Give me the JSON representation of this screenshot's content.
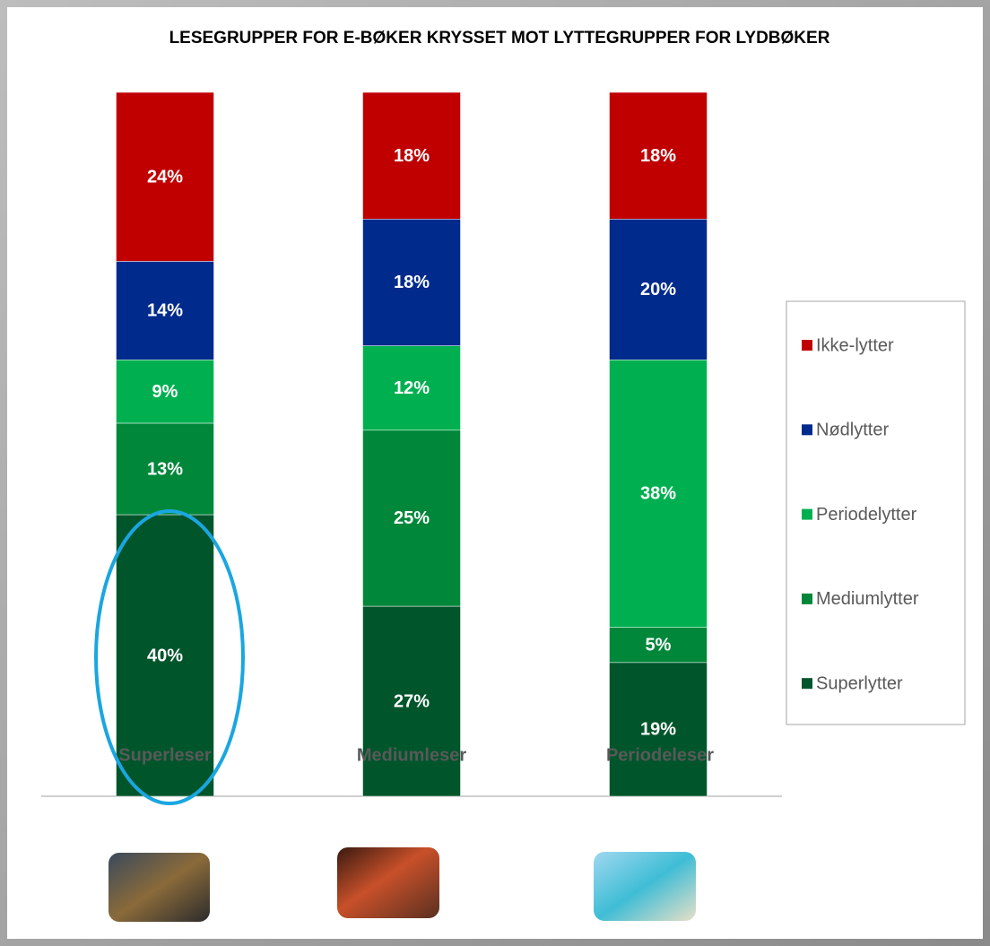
{
  "chart_data": {
    "type": "stacked_bar",
    "title": "LESEGRUPPER FOR E-BØKER KRYSSET MOT LYTTEGRUPPER FOR LYDBØKER",
    "categories": [
      "Superleser",
      "Mediumleser",
      "Periodeleser"
    ],
    "series": [
      {
        "name": "Superlytter",
        "color": "#00552b",
        "values": [
          40,
          27,
          19
        ],
        "value_labels": [
          "40%",
          "27%",
          "19%"
        ]
      },
      {
        "name": "Mediumlytter",
        "color": "#00873a",
        "values": [
          13,
          25,
          5
        ],
        "value_labels": [
          "13%",
          "25%",
          "5%"
        ]
      },
      {
        "name": "Periodelytter",
        "color": "#00b050",
        "values": [
          9,
          12,
          38
        ],
        "value_labels": [
          "9%",
          "12%",
          "38%"
        ]
      },
      {
        "name": "Nødlytter",
        "color": "#002a8c",
        "values": [
          14,
          18,
          20
        ],
        "value_labels": [
          "14%",
          "18%",
          "20%"
        ]
      },
      {
        "name": "Ikke-lytter",
        "color": "#c00000",
        "values": [
          24,
          18,
          18
        ],
        "value_labels": [
          "24%",
          "18%",
          "18%"
        ]
      }
    ]
  }
}
